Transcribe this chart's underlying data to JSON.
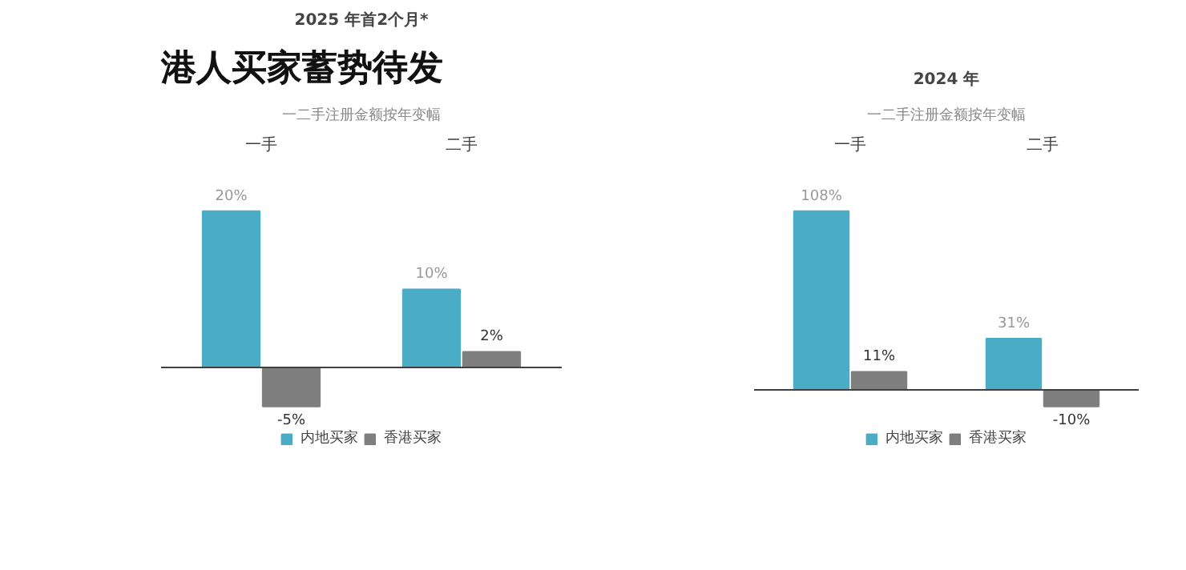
{
  "chart_data": [
    {
      "type": "bar",
      "title": "2025 年首2个月*",
      "subtitle": "一二手注册金额按年变幅",
      "annotations": [
        "港人买家蓄势待发"
      ],
      "categories": [
        "一手",
        "二手"
      ],
      "series": [
        {
          "name": "内地买家",
          "color": "#4bacc6",
          "values": [
            20,
            10
          ],
          "value_labels": [
            "20%",
            "10%"
          ]
        },
        {
          "name": "香港买家",
          "color": "#7f7f7f",
          "values": [
            -5,
            2
          ],
          "value_labels": [
            "-5%",
            "2%"
          ]
        }
      ],
      "legend": "bottom",
      "grid": false
    },
    {
      "type": "bar",
      "title": "2024 年",
      "subtitle": "一二手注册金额按年变幅",
      "categories": [
        "一手",
        "二手"
      ],
      "series": [
        {
          "name": "内地买家",
          "color": "#4bacc6",
          "values": [
            108,
            31
          ],
          "value_labels": [
            "108%",
            "31%"
          ]
        },
        {
          "name": "香港买家",
          "color": "#7f7f7f",
          "values": [
            11,
            -10
          ],
          "value_labels": [
            "11%",
            "-10%"
          ]
        }
      ],
      "legend": "bottom",
      "grid": false
    }
  ]
}
